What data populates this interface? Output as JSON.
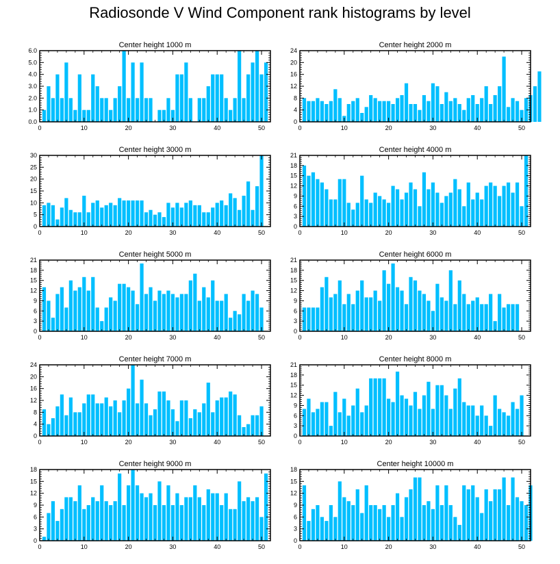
{
  "title": "Radiosonde V Wind Component rank histograms by level",
  "colors": {
    "bar": "#00BFFF",
    "axis": "#000000"
  },
  "chart_data": [
    {
      "type": "bar",
      "title": "Center height 1000 m",
      "ylim": [
        0,
        6
      ],
      "yticks": [
        "0.0",
        "1.0",
        "2.0",
        "3.0",
        "4.0",
        "5.0",
        "6.0"
      ],
      "xlim": [
        0,
        52
      ],
      "xticks": [
        "0",
        "10",
        "20",
        "30",
        "40",
        "50"
      ],
      "values": [
        1,
        3,
        2,
        4,
        2,
        5,
        2,
        1,
        4,
        1,
        1,
        4,
        3,
        2,
        2,
        1,
        2,
        3,
        6,
        2,
        5,
        2,
        5,
        2,
        2,
        0,
        1,
        1,
        2,
        1,
        4,
        4,
        5,
        2,
        0,
        2,
        2,
        3,
        4,
        4,
        4,
        2,
        1,
        2,
        6,
        2,
        4,
        5,
        6,
        4,
        5
      ]
    },
    {
      "type": "bar",
      "title": "Center height 2000 m",
      "ylim": [
        0,
        24
      ],
      "yticks": [
        "0",
        "4",
        "8",
        "12",
        "16",
        "20",
        "24"
      ],
      "xlim": [
        0,
        52
      ],
      "xticks": [
        "0",
        "10",
        "20",
        "30",
        "40",
        "50"
      ],
      "values": [
        8,
        7,
        7,
        8,
        7,
        6,
        7,
        11,
        8,
        2,
        6,
        7,
        8,
        3,
        5,
        9,
        8,
        7,
        7,
        7,
        6,
        8,
        9,
        13,
        6,
        6,
        4,
        9,
        7,
        13,
        12,
        6,
        10,
        7,
        8,
        6,
        4,
        8,
        9,
        6,
        8,
        12,
        6,
        9,
        12,
        22,
        5,
        8,
        7,
        4,
        8,
        9,
        12,
        17
      ]
    },
    {
      "type": "bar",
      "title": "Center height 3000 m",
      "ylim": [
        0,
        30
      ],
      "yticks": [
        "0",
        "5",
        "10",
        "15",
        "20",
        "25",
        "30"
      ],
      "xlim": [
        0,
        52
      ],
      "xticks": [
        "0",
        "10",
        "20",
        "30",
        "40",
        "50"
      ],
      "values": [
        9,
        10,
        9,
        3,
        8,
        12,
        7,
        6,
        6,
        13,
        6,
        10,
        11,
        8,
        9,
        10,
        9,
        12,
        11,
        11,
        11,
        11,
        11,
        6,
        7,
        5,
        6,
        4,
        10,
        8,
        10,
        8,
        10,
        11,
        9,
        9,
        6,
        6,
        8,
        10,
        11,
        9,
        14,
        12,
        7,
        13,
        19,
        7,
        17,
        30
      ]
    },
    {
      "type": "bar",
      "title": "Center height 4000 m",
      "ylim": [
        0,
        21
      ],
      "yticks": [
        "0",
        "3",
        "6",
        "9",
        "12",
        "15",
        "18",
        "21"
      ],
      "xlim": [
        0,
        52
      ],
      "xticks": [
        "0",
        "10",
        "20",
        "30",
        "40",
        "50"
      ],
      "values": [
        18,
        15,
        16,
        14,
        13,
        11,
        8,
        8,
        14,
        14,
        7,
        5,
        7,
        15,
        8,
        7,
        10,
        9,
        8,
        7,
        12,
        11,
        8,
        10,
        13,
        11,
        6,
        16,
        11,
        13,
        10,
        7,
        9,
        10,
        14,
        11,
        6,
        13,
        8,
        10,
        8,
        12,
        13,
        12,
        9,
        12,
        13,
        10,
        13,
        6,
        21
      ]
    },
    {
      "type": "bar",
      "title": "Center height 5000 m",
      "ylim": [
        0,
        21
      ],
      "yticks": [
        "0",
        "3",
        "6",
        "9",
        "12",
        "15",
        "18",
        "21"
      ],
      "xlim": [
        0,
        52
      ],
      "xticks": [
        "0",
        "10",
        "20",
        "30",
        "40",
        "50"
      ],
      "values": [
        13,
        9,
        4,
        11,
        13,
        7,
        15,
        12,
        13,
        16,
        12,
        16,
        7,
        3,
        7,
        10,
        9,
        14,
        14,
        13,
        12,
        8,
        20,
        11,
        13,
        9,
        12,
        11,
        12,
        11,
        10,
        11,
        11,
        15,
        17,
        9,
        13,
        10,
        15,
        9,
        9,
        11,
        4,
        6,
        5,
        11,
        9,
        12,
        11,
        7
      ]
    },
    {
      "type": "bar",
      "title": "Center height 6000 m",
      "ylim": [
        0,
        21
      ],
      "yticks": [
        "0",
        "3",
        "6",
        "9",
        "12",
        "15",
        "18",
        "21"
      ],
      "xlim": [
        0,
        52
      ],
      "xticks": [
        "0",
        "10",
        "20",
        "30",
        "40",
        "50"
      ],
      "values": [
        7,
        7,
        7,
        7,
        13,
        16,
        10,
        11,
        15,
        8,
        11,
        8,
        12,
        15,
        10,
        10,
        12,
        9,
        18,
        14,
        20,
        13,
        12,
        8,
        16,
        15,
        12,
        11,
        9,
        6,
        14,
        10,
        9,
        18,
        8,
        15,
        11,
        8,
        9,
        10,
        8,
        8,
        11,
        3,
        11,
        7,
        8,
        8,
        8
      ]
    },
    {
      "type": "bar",
      "title": "Center height 7000 m",
      "ylim": [
        0,
        24
      ],
      "yticks": [
        "0",
        "4",
        "8",
        "12",
        "16",
        "20",
        "24"
      ],
      "xlim": [
        0,
        52
      ],
      "xticks": [
        "0",
        "10",
        "20",
        "30",
        "40",
        "50"
      ],
      "values": [
        9,
        4,
        6,
        10,
        14,
        7,
        13,
        8,
        8,
        11,
        14,
        14,
        11,
        11,
        13,
        10,
        12,
        8,
        12,
        16,
        24,
        11,
        19,
        11,
        7,
        9,
        15,
        15,
        12,
        9,
        5,
        12,
        12,
        6,
        9,
        8,
        11,
        18,
        8,
        12,
        13,
        13,
        15,
        14,
        7,
        3,
        4,
        7,
        7,
        10
      ]
    },
    {
      "type": "bar",
      "title": "Center height 8000 m",
      "ylim": [
        0,
        21
      ],
      "yticks": [
        "0",
        "3",
        "6",
        "9",
        "12",
        "15",
        "18",
        "21"
      ],
      "xlim": [
        0,
        52
      ],
      "xticks": [
        "0",
        "10",
        "20",
        "30",
        "40",
        "50"
      ],
      "values": [
        8,
        11,
        7,
        8,
        10,
        10,
        3,
        13,
        7,
        11,
        6,
        9,
        14,
        7,
        9,
        17,
        17,
        17,
        17,
        11,
        10,
        19,
        12,
        11,
        9,
        13,
        8,
        12,
        16,
        8,
        15,
        15,
        12,
        8,
        14,
        17,
        10,
        9,
        9,
        6,
        9,
        6,
        3,
        12,
        8,
        7,
        6,
        10,
        8,
        12
      ]
    },
    {
      "type": "bar",
      "title": "Center height 9000 m",
      "ylim": [
        0,
        18
      ],
      "yticks": [
        "0",
        "3",
        "6",
        "9",
        "12",
        "15",
        "18"
      ],
      "xlim": [
        0,
        52
      ],
      "xticks": [
        "0",
        "10",
        "20",
        "30",
        "40",
        "50"
      ],
      "values": [
        1,
        7,
        10,
        5,
        8,
        11,
        11,
        10,
        14,
        8,
        9,
        11,
        10,
        14,
        10,
        9,
        10,
        17,
        9,
        14,
        18,
        14,
        12,
        11,
        12,
        9,
        15,
        9,
        14,
        9,
        12,
        9,
        11,
        11,
        14,
        11,
        9,
        13,
        12,
        12,
        9,
        12,
        8,
        8,
        15,
        10,
        11,
        10,
        11,
        6,
        17
      ]
    },
    {
      "type": "bar",
      "title": "Center height 10000 m",
      "ylim": [
        0,
        18
      ],
      "yticks": [
        "0",
        "3",
        "6",
        "9",
        "12",
        "15",
        "18"
      ],
      "xlim": [
        0,
        52
      ],
      "xticks": [
        "0",
        "10",
        "20",
        "30",
        "40",
        "50"
      ],
      "values": [
        14,
        5,
        8,
        9,
        6,
        5,
        9,
        6,
        15,
        11,
        10,
        9,
        13,
        7,
        14,
        9,
        9,
        8,
        9,
        6,
        9,
        12,
        6,
        11,
        13,
        16,
        16,
        9,
        10,
        8,
        14,
        9,
        14,
        9,
        6,
        4,
        14,
        13,
        14,
        11,
        7,
        13,
        10,
        13,
        13,
        16,
        9,
        16,
        11,
        10,
        9,
        14
      ]
    }
  ]
}
